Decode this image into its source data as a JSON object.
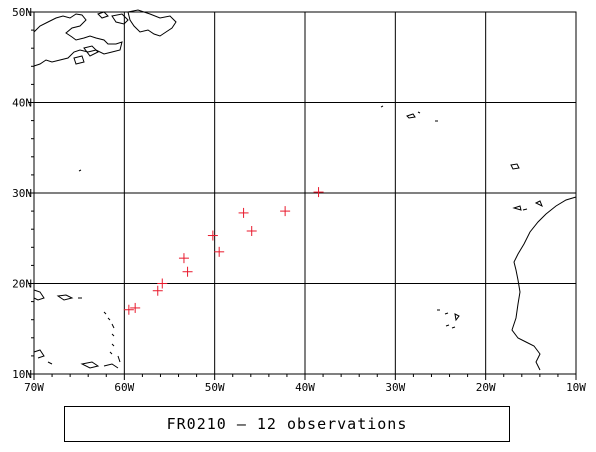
{
  "map": {
    "lon_range": [
      -70,
      -10
    ],
    "lat_range": [
      10,
      50
    ],
    "grid": true,
    "marker_color": "#e8192c",
    "marker_symbol": "plus",
    "x_tick_labels": [
      "70W",
      "60W",
      "50W",
      "40W",
      "30W",
      "20W",
      "10W"
    ],
    "y_tick_labels": [
      "10N",
      "20N",
      "30N",
      "40N",
      "50N"
    ]
  },
  "chart_data": {
    "type": "scatter",
    "title": "FR0210 - 12 observations",
    "xlabel": "",
    "ylabel": "",
    "xlim": [
      -70,
      -10
    ],
    "ylim": [
      10,
      50
    ],
    "series": [
      {
        "points": [
          {
            "lon": -38.5,
            "lat": 30.1
          },
          {
            "lon": -42.2,
            "lat": 28.0
          },
          {
            "lon": -46.8,
            "lat": 27.8
          },
          {
            "lon": -45.9,
            "lat": 25.8
          },
          {
            "lon": -50.2,
            "lat": 25.3
          },
          {
            "lon": -49.5,
            "lat": 23.5
          },
          {
            "lon": -53.4,
            "lat": 22.8
          },
          {
            "lon": -53.0,
            "lat": 21.3
          },
          {
            "lon": -55.8,
            "lat": 20.0
          },
          {
            "lon": -56.3,
            "lat": 19.2
          },
          {
            "lon": -58.8,
            "lat": 17.3
          },
          {
            "lon": -59.5,
            "lat": 17.1
          }
        ]
      }
    ]
  },
  "caption": {
    "text": "FR0210 – 12 observations"
  }
}
